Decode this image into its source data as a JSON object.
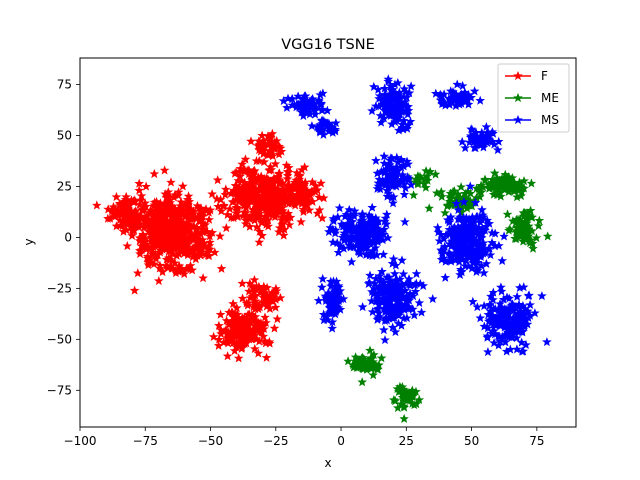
{
  "chart_data": {
    "type": "scatter",
    "title": "VGG16 TSNE",
    "xlabel": "x",
    "ylabel": "y",
    "xlim": [
      -100,
      90
    ],
    "ylim": [
      -93,
      88
    ],
    "xticks": [
      -100,
      -75,
      -50,
      -25,
      0,
      25,
      50,
      75
    ],
    "yticks": [
      -75,
      -50,
      -25,
      0,
      25,
      50,
      75
    ],
    "xtick_labels": [
      "−100",
      "−75",
      "−50",
      "−25",
      "0",
      "25",
      "50",
      "75"
    ],
    "ytick_labels": [
      "−75",
      "−50",
      "−25",
      "0",
      "25",
      "50",
      "75"
    ],
    "grid": false,
    "legend_position": "top-right",
    "marker": "star",
    "series": [
      {
        "name": "F",
        "color": "#ff0000",
        "clusters": [
          {
            "center": [
              -65,
              2
            ],
            "spread": [
              13,
              17
            ],
            "count": 520
          },
          {
            "center": [
              -82,
              12
            ],
            "spread": [
              6,
              8
            ],
            "count": 90
          },
          {
            "center": [
              -30,
              20
            ],
            "spread": [
              11,
              14
            ],
            "count": 340
          },
          {
            "center": [
              -15,
              22
            ],
            "spread": [
              7,
              8
            ],
            "count": 80
          },
          {
            "center": [
              -38,
              -45
            ],
            "spread": [
              8,
              10
            ],
            "count": 180
          },
          {
            "center": [
              -30,
              -28
            ],
            "spread": [
              6,
              6
            ],
            "count": 60
          },
          {
            "center": [
              -28,
              45
            ],
            "spread": [
              5,
              5
            ],
            "count": 40
          }
        ]
      },
      {
        "name": "ME",
        "color": "#008000",
        "clusters": [
          {
            "center": [
              70,
              5
            ],
            "spread": [
              5,
              9
            ],
            "count": 70
          },
          {
            "center": [
              62,
              25
            ],
            "spread": [
              8,
              5
            ],
            "count": 90
          },
          {
            "center": [
              45,
              18
            ],
            "spread": [
              7,
              6
            ],
            "count": 55
          },
          {
            "center": [
              30,
              28
            ],
            "spread": [
              4,
              5
            ],
            "count": 20
          },
          {
            "center": [
              9,
              -62
            ],
            "spread": [
              6,
              4
            ],
            "count": 60
          },
          {
            "center": [
              25,
              -78
            ],
            "spread": [
              4,
              5
            ],
            "count": 50
          }
        ]
      },
      {
        "name": "MS",
        "color": "#0000ff",
        "clusters": [
          {
            "center": [
              -13,
              65
            ],
            "spread": [
              7,
              5
            ],
            "count": 70
          },
          {
            "center": [
              -5,
              55
            ],
            "spread": [
              4,
              3
            ],
            "count": 30
          },
          {
            "center": [
              20,
              65
            ],
            "spread": [
              5,
              9
            ],
            "count": 120
          },
          {
            "center": [
              20,
              30
            ],
            "spread": [
              5,
              9
            ],
            "count": 90
          },
          {
            "center": [
              8,
              2
            ],
            "spread": [
              9,
              10
            ],
            "count": 180
          },
          {
            "center": [
              -3,
              -32
            ],
            "spread": [
              4,
              9
            ],
            "count": 70
          },
          {
            "center": [
              20,
              -30
            ],
            "spread": [
              9,
              12
            ],
            "count": 180
          },
          {
            "center": [
              48,
              -2
            ],
            "spread": [
              9,
              13
            ],
            "count": 260
          },
          {
            "center": [
              64,
              -40
            ],
            "spread": [
              8,
              11
            ],
            "count": 190
          },
          {
            "center": [
              44,
              68
            ],
            "spread": [
              6,
              4
            ],
            "count": 60
          },
          {
            "center": [
              53,
              48
            ],
            "spread": [
              5,
              5
            ],
            "count": 50
          }
        ]
      }
    ]
  }
}
